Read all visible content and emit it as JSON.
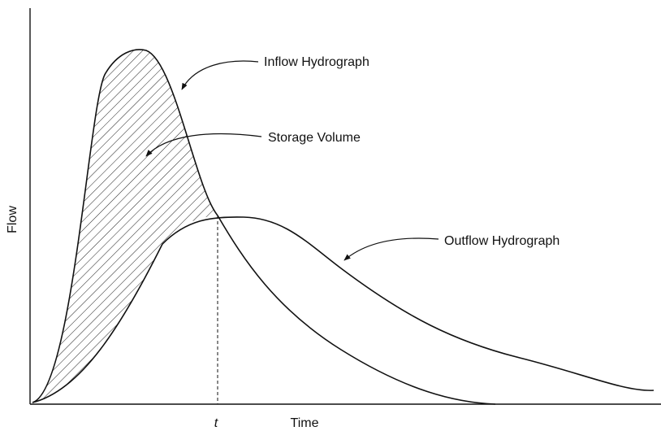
{
  "annotations": {
    "inflow": "Inflow Hydrograph",
    "storage": "Storage Volume",
    "outflow": "Outflow Hydrograph"
  },
  "axes": {
    "y_label": "Flow",
    "x_label": "Time",
    "x_marker": "t"
  }
}
